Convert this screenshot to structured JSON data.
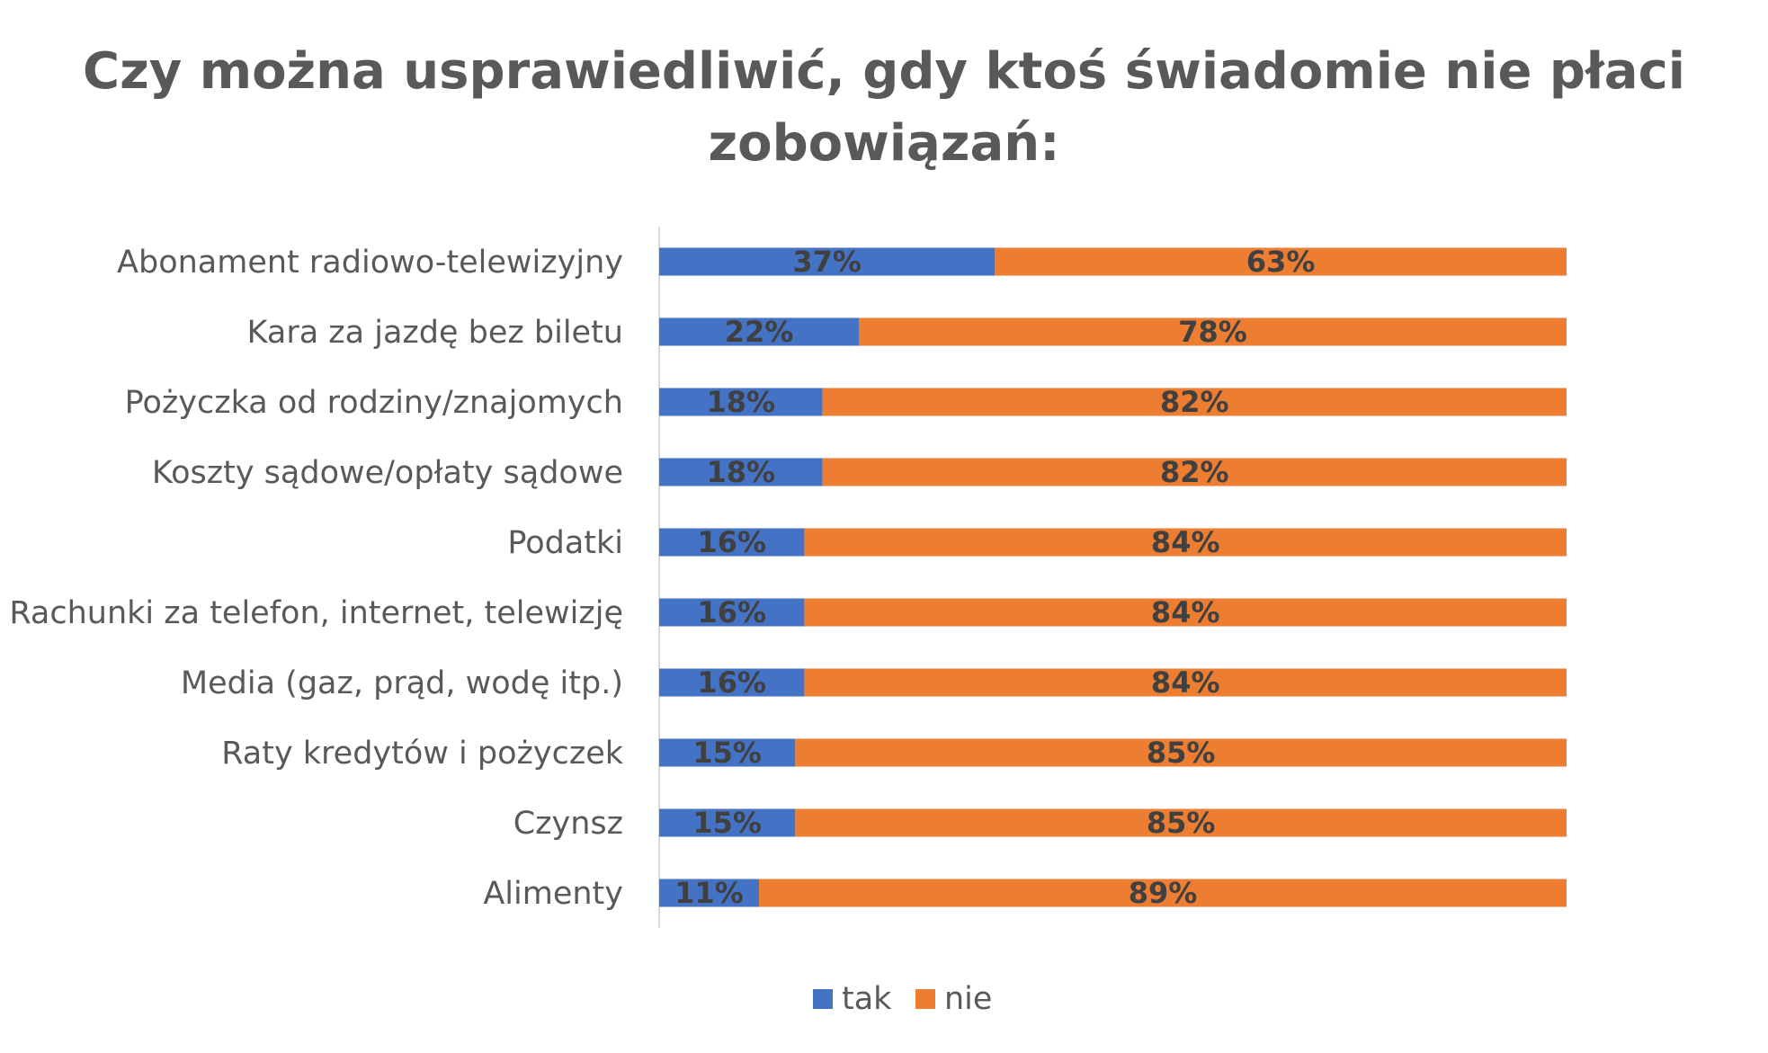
{
  "chart_data": {
    "type": "bar",
    "orientation": "horizontal",
    "stacked": true,
    "title_lines": [
      "Czy można usprawiedliwić, gdy ktoś świadomie nie płaci",
      "zobowiązań:"
    ],
    "categories": [
      "Abonament radiowo-telewizyjny",
      "Kara za jazdę bez biletu",
      "Pożyczka od rodziny/znajomych",
      "Koszty sądowe/opłaty sądowe",
      "Podatki",
      "Rachunki za telefon, internet, telewizję",
      "Media (gaz, prąd, wodę itp.)",
      "Raty kredytów i pożyczek",
      "Czynsz",
      "Alimenty"
    ],
    "series": [
      {
        "name": "tak",
        "color": "#4472C4",
        "values": [
          37,
          22,
          18,
          18,
          16,
          16,
          16,
          15,
          15,
          11
        ],
        "labels": [
          "37%",
          "22%",
          "18%",
          "18%",
          "16%",
          "16%",
          "16%",
          "15%",
          "15%",
          "11%"
        ]
      },
      {
        "name": "nie",
        "color": "#ED7D31",
        "values": [
          63,
          78,
          82,
          82,
          84,
          84,
          84,
          85,
          85,
          89
        ],
        "labels": [
          "63%",
          "78%",
          "82%",
          "82%",
          "84%",
          "84%",
          "84%",
          "85%",
          "85%",
          "89%"
        ]
      }
    ],
    "xlim": [
      0,
      100
    ],
    "unit": "%",
    "grid": false,
    "legend_position": "bottom",
    "axis_line_color": "#D9D9D9"
  }
}
